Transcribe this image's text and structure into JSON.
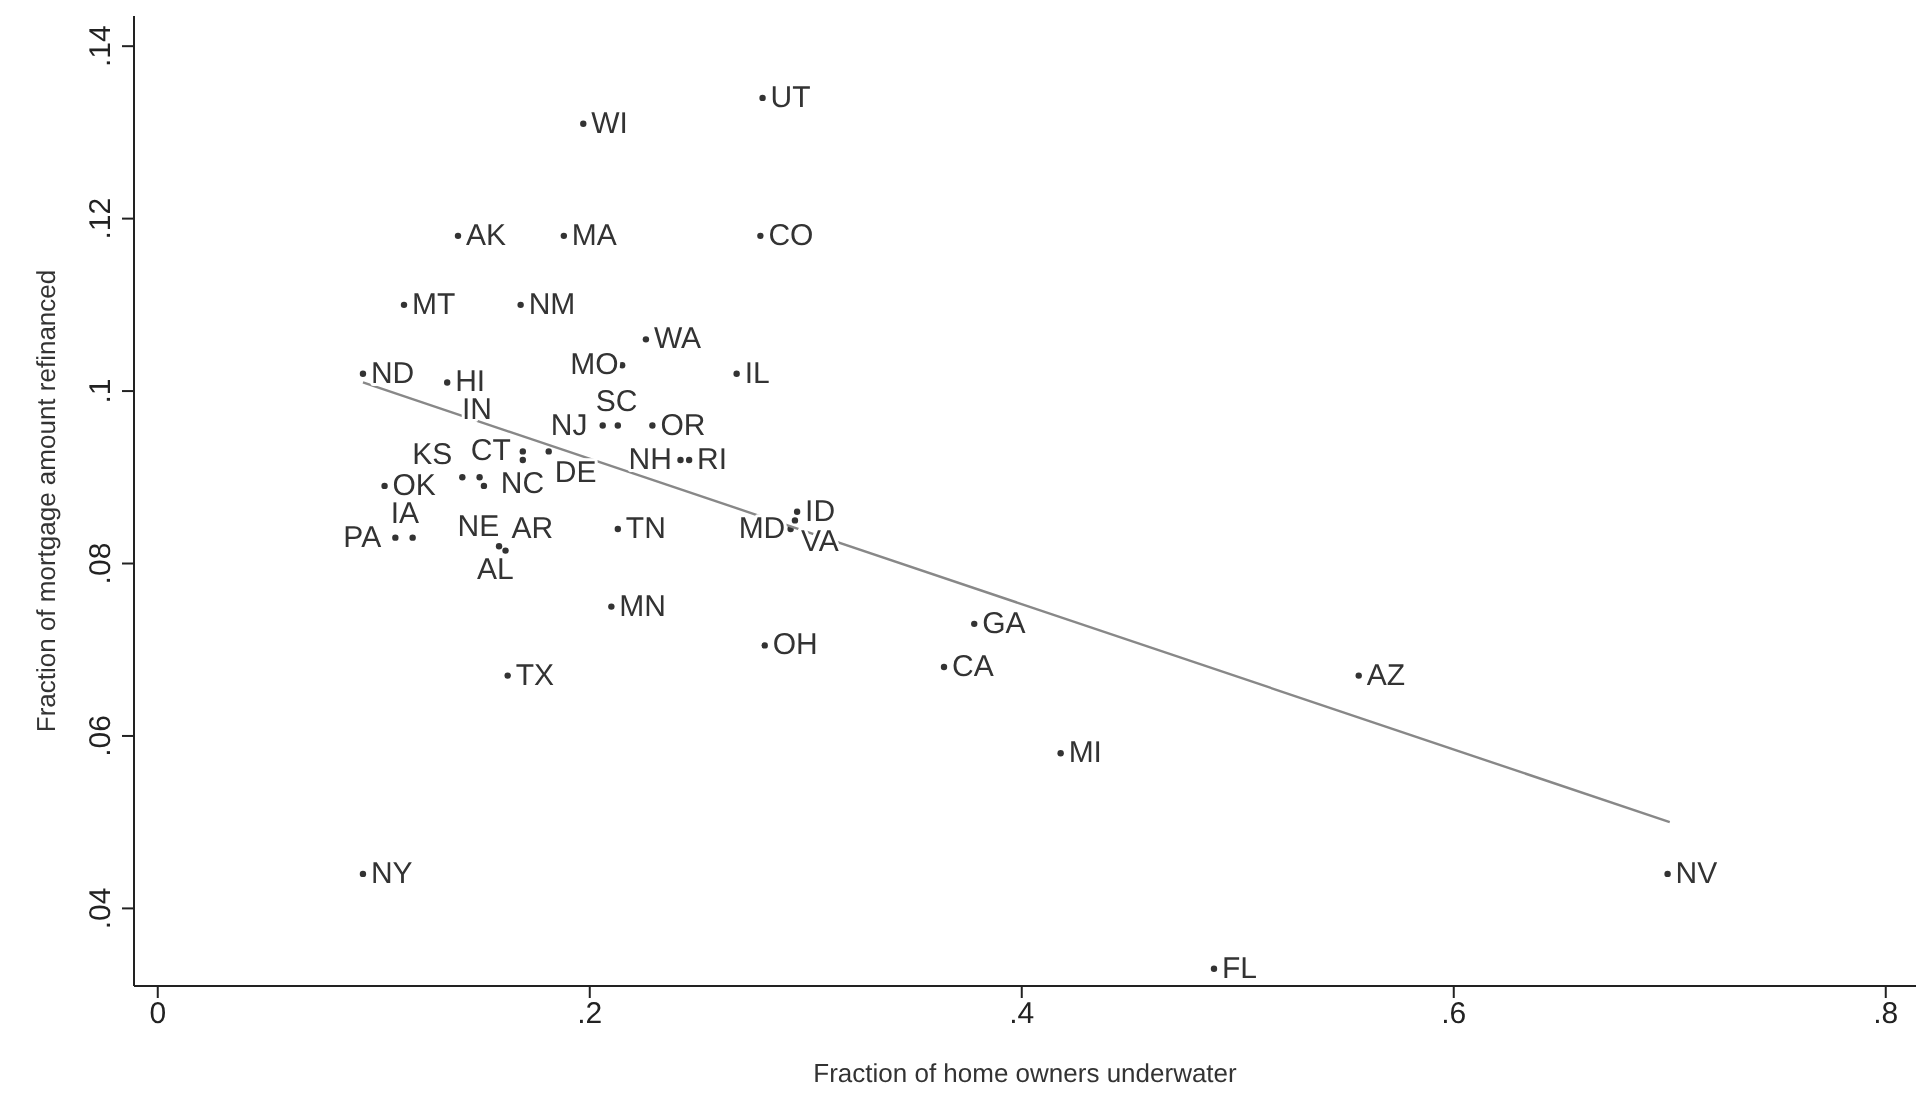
{
  "chart_data": {
    "type": "scatter",
    "xlabel": "Fraction of home owners underwater",
    "ylabel": "Fraction of mortgage amount refinanced",
    "xlim": [
      -0.011,
      0.814
    ],
    "ylim": [
      0.031,
      0.1435
    ],
    "xticks": [
      {
        "value": 0,
        "label": "0"
      },
      {
        "value": 0.2,
        "label": ".2"
      },
      {
        "value": 0.4,
        "label": ".4"
      },
      {
        "value": 0.6,
        "label": ".6"
      },
      {
        "value": 0.8,
        "label": ".8"
      }
    ],
    "yticks": [
      {
        "value": 0.04,
        "label": ".04"
      },
      {
        "value": 0.06,
        "label": ".06"
      },
      {
        "value": 0.08,
        "label": ".08"
      },
      {
        "value": 0.1,
        "label": ".1"
      },
      {
        "value": 0.12,
        "label": ".12"
      },
      {
        "value": 0.14,
        "label": ".14"
      }
    ],
    "grid": false,
    "legend": false,
    "series": [
      {
        "type": "scatter",
        "color": "#333333",
        "marker": "circle",
        "x": [
          0.28,
          0.197,
          0.139,
          0.188,
          0.279,
          0.114,
          0.168,
          0.226,
          0.215,
          0.268,
          0.095,
          0.134,
          0.229,
          0.206,
          0.213,
          0.169,
          0.181,
          0.169,
          0.242,
          0.246,
          0.105,
          0.141,
          0.149,
          0.151,
          0.296,
          0.295,
          0.293,
          0.213,
          0.11,
          0.118,
          0.158,
          0.161,
          0.21,
          0.378,
          0.281,
          0.364,
          0.556,
          0.162,
          0.418,
          0.095,
          0.699,
          0.489
        ],
        "values": [
          0.134,
          0.131,
          0.118,
          0.118,
          0.118,
          0.11,
          0.11,
          0.106,
          0.103,
          0.102,
          0.102,
          0.101,
          0.096,
          0.096,
          0.096,
          0.093,
          0.093,
          0.092,
          0.092,
          0.092,
          0.089,
          0.09,
          0.09,
          0.089,
          0.086,
          0.085,
          0.084,
          0.084,
          0.083,
          0.083,
          0.082,
          0.0815,
          0.075,
          0.073,
          0.0705,
          0.068,
          0.067,
          0.067,
          0.058,
          0.044,
          0.044,
          0.033
        ]
      },
      {
        "type": "line",
        "color": "#888888",
        "marker": "none",
        "x": [
          0.095,
          0.7
        ],
        "values": [
          0.101,
          0.05
        ]
      }
    ],
    "annotations": [
      {
        "text": "UT",
        "x": 0.28,
        "y": 0.134
      },
      {
        "text": "WI",
        "x": 0.197,
        "y": 0.131
      },
      {
        "text": "AK",
        "x": 0.139,
        "y": 0.118
      },
      {
        "text": "MA",
        "x": 0.188,
        "y": 0.118
      },
      {
        "text": "CO",
        "x": 0.279,
        "y": 0.118
      },
      {
        "text": "MT",
        "x": 0.114,
        "y": 0.11
      },
      {
        "text": "NM",
        "x": 0.168,
        "y": 0.11
      },
      {
        "text": "WA",
        "x": 0.226,
        "y": 0.106
      },
      {
        "text": "MO",
        "x": 0.215,
        "y": 0.103
      },
      {
        "text": "IL",
        "x": 0.268,
        "y": 0.102
      },
      {
        "text": "ND",
        "x": 0.095,
        "y": 0.102
      },
      {
        "text": "HI",
        "x": 0.134,
        "y": 0.101
      },
      {
        "text": "OR",
        "x": 0.229,
        "y": 0.096
      },
      {
        "text": "NJ",
        "x": 0.206,
        "y": 0.096
      },
      {
        "text": "SC",
        "x": 0.213,
        "y": 0.096
      },
      {
        "text": "CT",
        "x": 0.169,
        "y": 0.093
      },
      {
        "text": "DE",
        "x": 0.181,
        "y": 0.093
      },
      {
        "text": "NC",
        "x": 0.169,
        "y": 0.092
      },
      {
        "text": "NH",
        "x": 0.242,
        "y": 0.092
      },
      {
        "text": "RI",
        "x": 0.246,
        "y": 0.092
      },
      {
        "text": "OK",
        "x": 0.105,
        "y": 0.089
      },
      {
        "text": "KS",
        "x": 0.141,
        "y": 0.09
      },
      {
        "text": "NE",
        "x": 0.149,
        "y": 0.09
      },
      {
        "text": "IN",
        "x": 0.151,
        "y": 0.089
      },
      {
        "text": "ID",
        "x": 0.296,
        "y": 0.086
      },
      {
        "text": "VA",
        "x": 0.295,
        "y": 0.085
      },
      {
        "text": "MD",
        "x": 0.293,
        "y": 0.084
      },
      {
        "text": "TN",
        "x": 0.213,
        "y": 0.084
      },
      {
        "text": "PA",
        "x": 0.11,
        "y": 0.083
      },
      {
        "text": "IA",
        "x": 0.118,
        "y": 0.083
      },
      {
        "text": "AL",
        "x": 0.158,
        "y": 0.082
      },
      {
        "text": "AR",
        "x": 0.161,
        "y": 0.0815
      },
      {
        "text": "MN",
        "x": 0.21,
        "y": 0.075
      },
      {
        "text": "GA",
        "x": 0.378,
        "y": 0.073
      },
      {
        "text": "OH",
        "x": 0.281,
        "y": 0.0705
      },
      {
        "text": "CA",
        "x": 0.364,
        "y": 0.068
      },
      {
        "text": "AZ",
        "x": 0.556,
        "y": 0.067
      },
      {
        "text": "TX",
        "x": 0.162,
        "y": 0.067
      },
      {
        "text": "MI",
        "x": 0.418,
        "y": 0.058
      },
      {
        "text": "NY",
        "x": 0.095,
        "y": 0.044
      },
      {
        "text": "NV",
        "x": 0.699,
        "y": 0.044
      },
      {
        "text": "FL",
        "x": 0.489,
        "y": 0.033
      }
    ]
  }
}
